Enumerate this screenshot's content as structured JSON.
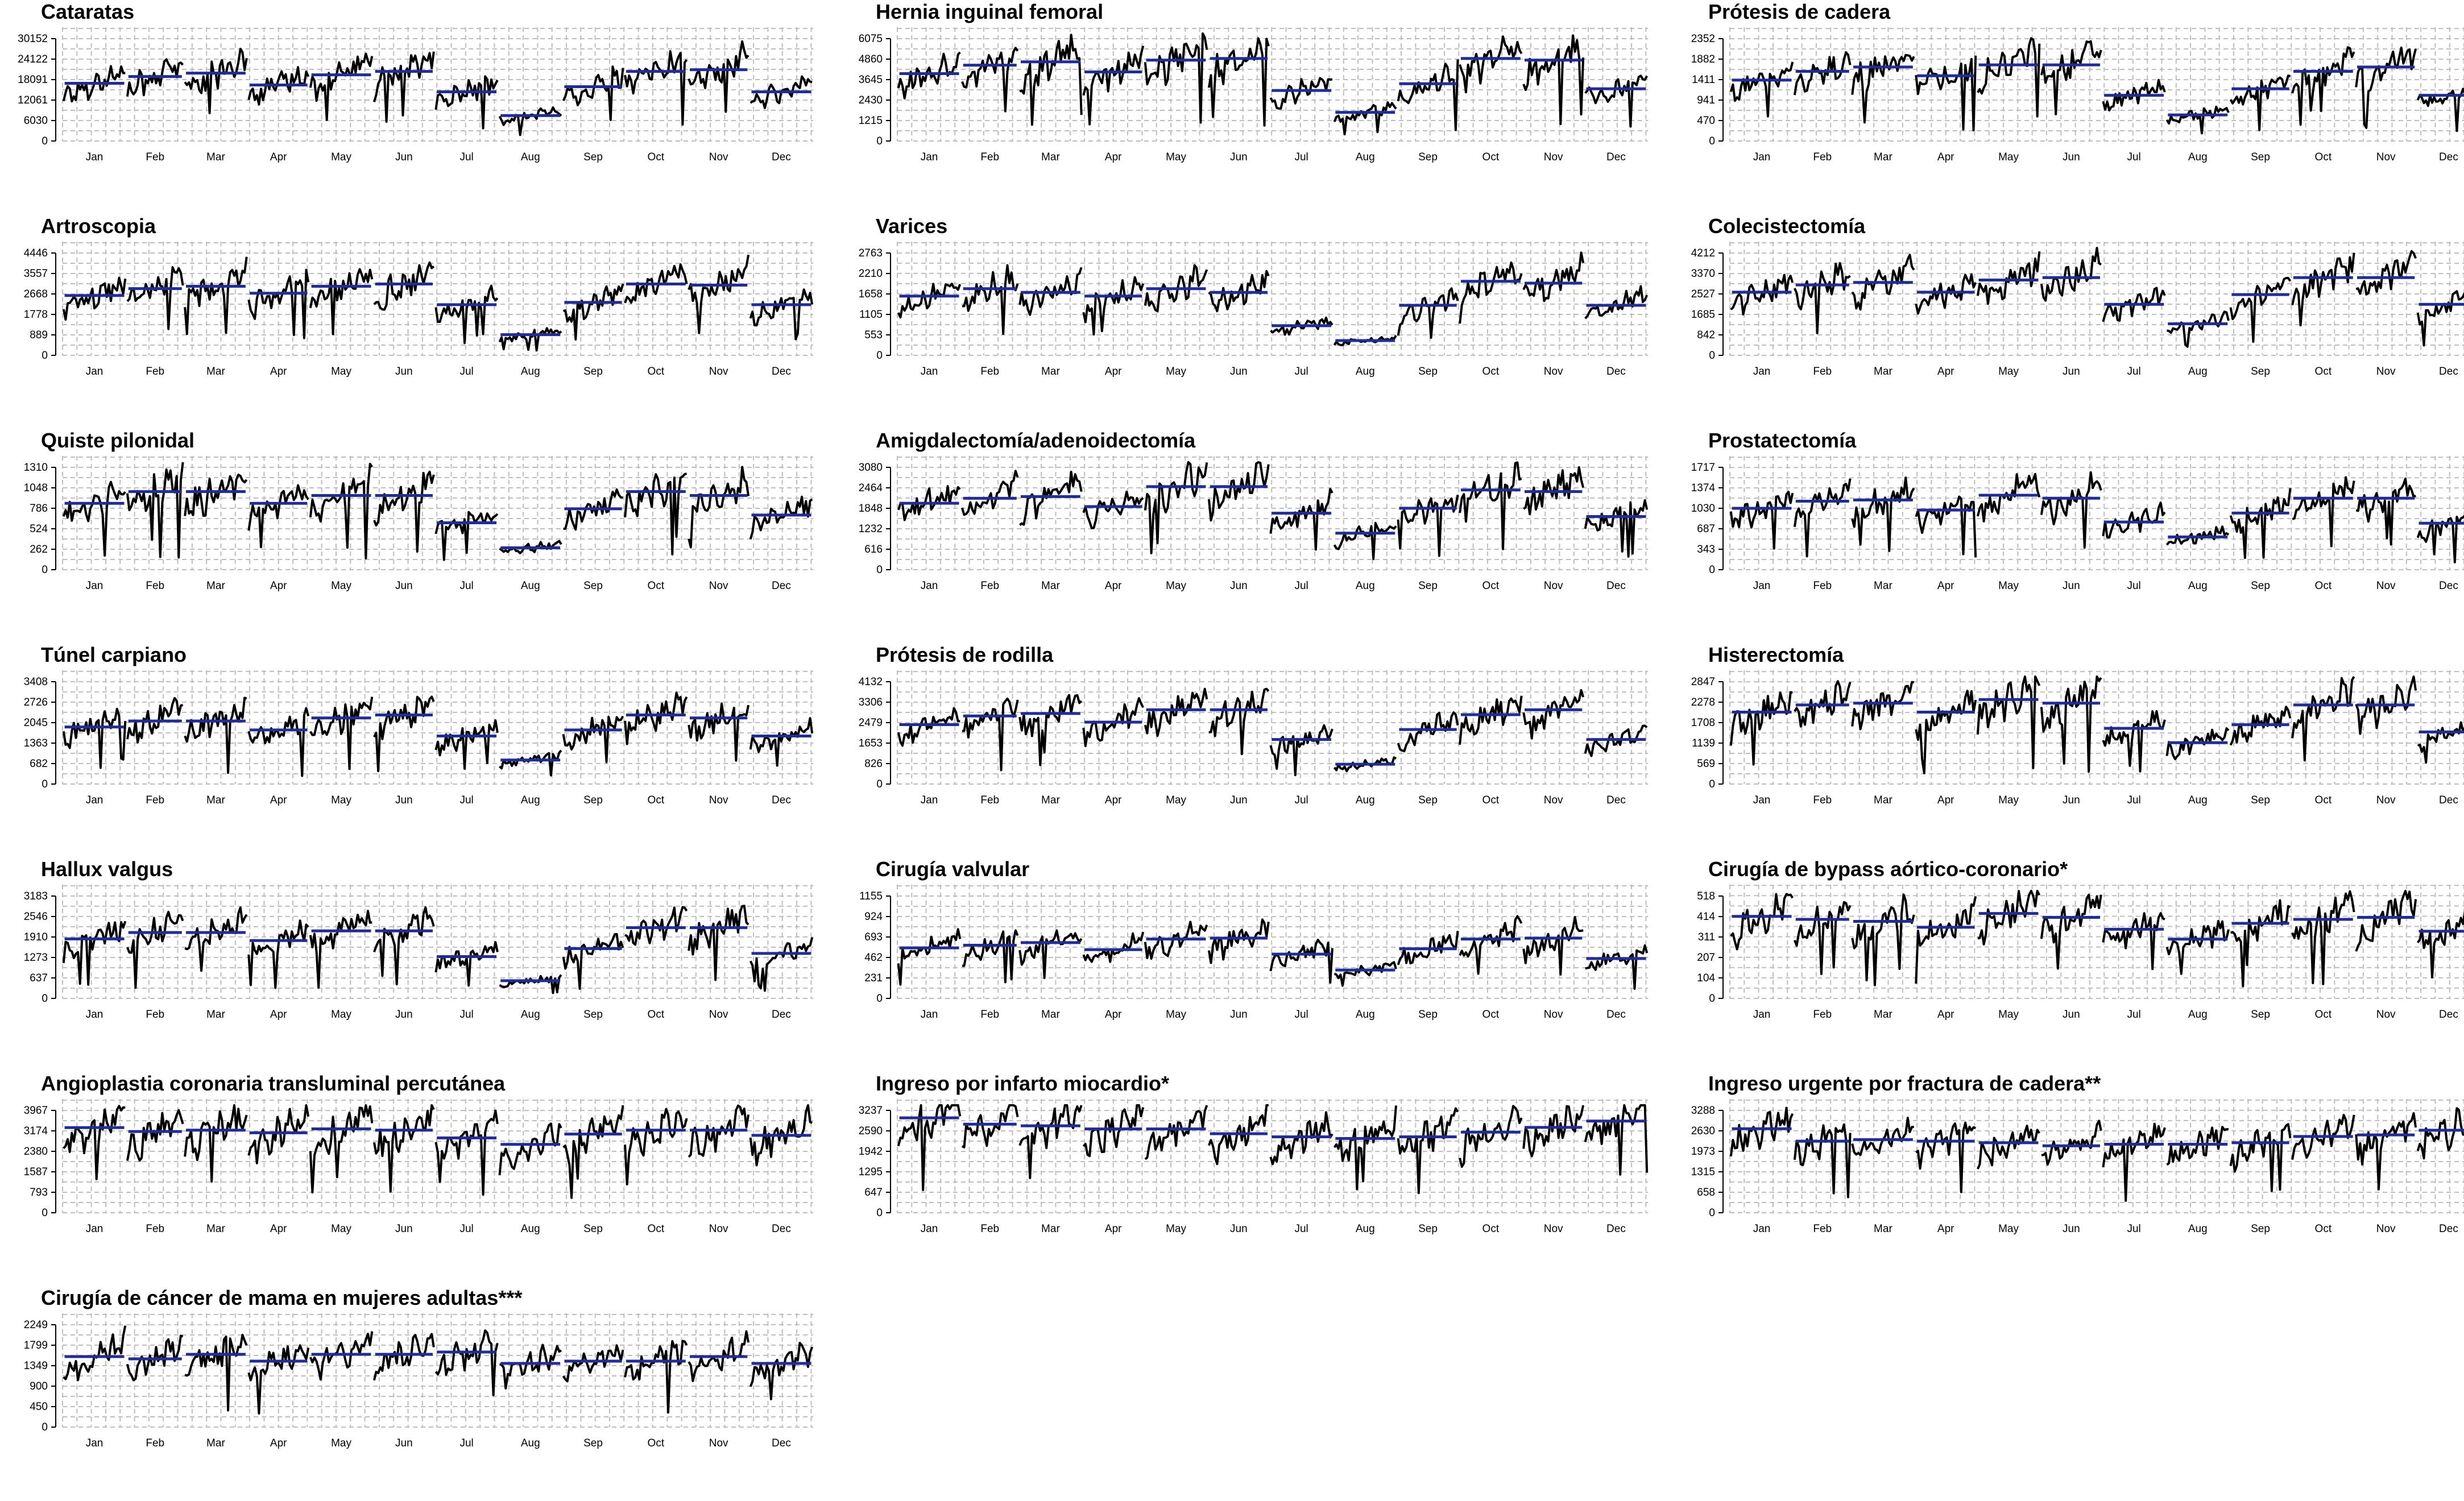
{
  "months": [
    "Jan",
    "Feb",
    "Mar",
    "Apr",
    "May",
    "Jun",
    "Jul",
    "Aug",
    "Sep",
    "Oct",
    "Nov",
    "Dec"
  ],
  "colors": {
    "series": "#000000",
    "mean": "#1f2c99",
    "grid": "#bdbdbd"
  },
  "chart_data": [
    {
      "type": "line",
      "title": "Cataratas",
      "yticks": [
        0,
        6030,
        12061,
        18091,
        24122,
        30152
      ],
      "ylim": [
        0,
        30152
      ],
      "monthly_mean": [
        17000,
        19000,
        20000,
        16500,
        19500,
        20500,
        14500,
        7500,
        16000,
        20500,
        21000,
        14500
      ]
    },
    {
      "type": "line",
      "title": "Hernia inguinal femoral",
      "yticks": [
        0,
        1215,
        2430,
        3645,
        4860,
        6075
      ],
      "ylim": [
        0,
        6075
      ],
      "monthly_mean": [
        4000,
        4500,
        4700,
        4100,
        4800,
        4900,
        3000,
        1700,
        3400,
        4900,
        4800,
        3100
      ]
    },
    {
      "type": "line",
      "title": "Prótesis de cadera",
      "yticks": [
        0,
        470,
        941,
        1411,
        1882,
        2352
      ],
      "ylim": [
        0,
        2352
      ],
      "monthly_mean": [
        1400,
        1600,
        1700,
        1500,
        1750,
        1750,
        1050,
        600,
        1200,
        1600,
        1700,
        1050
      ]
    },
    {
      "type": "line",
      "title": "Artroscopia",
      "yticks": [
        0,
        889,
        1778,
        2668,
        3557,
        4446
      ],
      "ylim": [
        0,
        4446
      ],
      "monthly_mean": [
        2600,
        2900,
        3000,
        2700,
        3000,
        3100,
        2200,
        900,
        2300,
        3100,
        3050,
        2200
      ]
    },
    {
      "type": "line",
      "title": "Varices",
      "yticks": [
        0,
        553,
        1105,
        1658,
        2210,
        2763
      ],
      "ylim": [
        0,
        2763
      ],
      "monthly_mean": [
        1600,
        1800,
        1700,
        1600,
        1800,
        1700,
        800,
        400,
        1350,
        2000,
        1950,
        1350
      ]
    },
    {
      "type": "line",
      "title": "Colecistectomía",
      "yticks": [
        0,
        842,
        1685,
        2527,
        3370,
        4212
      ],
      "ylim": [
        0,
        4212
      ],
      "monthly_mean": [
        2600,
        2900,
        3000,
        2600,
        3100,
        3200,
        2100,
        1300,
        2500,
        3200,
        3200,
        2100
      ]
    },
    {
      "type": "line",
      "title": "Quiste pilonidal",
      "yticks": [
        0,
        262,
        524,
        786,
        1048,
        1310
      ],
      "ylim": [
        0,
        1310
      ],
      "monthly_mean": [
        850,
        1000,
        1000,
        850,
        950,
        950,
        600,
        280,
        780,
        1000,
        950,
        700
      ]
    },
    {
      "type": "line",
      "title": "Amigdalectomía/adenoidectomía",
      "yticks": [
        0,
        616,
        1232,
        1848,
        2464,
        3080
      ],
      "ylim": [
        0,
        3080
      ],
      "monthly_mean": [
        2000,
        2150,
        2200,
        1900,
        2500,
        2500,
        1700,
        1100,
        1850,
        2400,
        2350,
        1600
      ]
    },
    {
      "type": "line",
      "title": "Prostatectomía",
      "yticks": [
        0,
        343,
        687,
        1030,
        1374,
        1717
      ],
      "ylim": [
        0,
        1717
      ],
      "monthly_mean": [
        1030,
        1150,
        1170,
        1000,
        1250,
        1200,
        800,
        550,
        950,
        1200,
        1200,
        780
      ]
    },
    {
      "type": "line",
      "title": "Túnel carpiano",
      "yticks": [
        0,
        682,
        1363,
        2045,
        2726,
        3408
      ],
      "ylim": [
        0,
        3408
      ],
      "monthly_mean": [
        1900,
        2100,
        2100,
        1800,
        2200,
        2300,
        1600,
        800,
        1800,
        2300,
        2200,
        1600
      ]
    },
    {
      "type": "line",
      "title": "Prótesis de rodilla",
      "yticks": [
        0,
        826,
        1653,
        2479,
        3306,
        4132
      ],
      "ylim": [
        0,
        4132
      ],
      "monthly_mean": [
        2400,
        2750,
        2850,
        2500,
        3000,
        3000,
        1800,
        800,
        2200,
        2800,
        3000,
        1800
      ]
    },
    {
      "type": "line",
      "title": "Histerectomía",
      "yticks": [
        0,
        569,
        1139,
        1708,
        2278,
        2847
      ],
      "ylim": [
        0,
        2847
      ],
      "monthly_mean": [
        2000,
        2200,
        2250,
        2000,
        2350,
        2250,
        1550,
        1150,
        1650,
        2200,
        2200,
        1450
      ]
    },
    {
      "type": "line",
      "title": "Hallux valgus",
      "yticks": [
        0,
        637,
        1273,
        1910,
        2546,
        3183
      ],
      "ylim": [
        0,
        3183
      ],
      "monthly_mean": [
        1850,
        2050,
        2050,
        1800,
        2100,
        2100,
        1300,
        550,
        1550,
        2200,
        2200,
        1400
      ]
    },
    {
      "type": "line",
      "title": "Cirugía valvular",
      "yticks": [
        0,
        231,
        462,
        693,
        924,
        1155
      ],
      "ylim": [
        0,
        1155
      ],
      "monthly_mean": [
        570,
        600,
        630,
        550,
        670,
        680,
        500,
        320,
        560,
        670,
        680,
        450
      ]
    },
    {
      "type": "line",
      "title": "Cirugía de bypass aórtico-coronario*",
      "yticks": [
        0,
        104,
        207,
        311,
        414,
        518
      ],
      "ylim": [
        0,
        518
      ],
      "monthly_mean": [
        415,
        400,
        390,
        360,
        430,
        410,
        350,
        300,
        380,
        400,
        410,
        340
      ]
    },
    {
      "type": "line",
      "title": "Angioplastia coronaria transluminal percutánea",
      "yticks": [
        0,
        793,
        1587,
        2380,
        3174,
        3967
      ],
      "ylim": [
        0,
        3967
      ],
      "monthly_mean": [
        3300,
        3150,
        3200,
        3100,
        3250,
        3200,
        2900,
        2650,
        3050,
        3200,
        3200,
        3000
      ]
    },
    {
      "type": "line",
      "title": "Ingreso por infarto miocardio*",
      "yticks": [
        0,
        647,
        1295,
        1942,
        2590,
        3237
      ],
      "ylim": [
        0,
        3237
      ],
      "monthly_mean": [
        3000,
        2800,
        2750,
        2650,
        2650,
        2500,
        2400,
        2350,
        2400,
        2550,
        2700,
        2900
      ]
    },
    {
      "type": "line",
      "title": "Ingreso urgente por fractura de cadera**",
      "yticks": [
        0,
        658,
        1315,
        1973,
        2630,
        3288
      ],
      "ylim": [
        0,
        3288
      ],
      "monthly_mean": [
        2700,
        2300,
        2350,
        2300,
        2250,
        2150,
        2200,
        2200,
        2250,
        2450,
        2500,
        2650
      ]
    },
    {
      "type": "line",
      "title": "Cirugía de cáncer de mama en mujeres adultas***",
      "yticks": [
        0,
        450,
        900,
        1349,
        1799,
        2249
      ],
      "ylim": [
        0,
        2249
      ],
      "monthly_mean": [
        1550,
        1500,
        1600,
        1450,
        1600,
        1600,
        1650,
        1400,
        1450,
        1450,
        1550,
        1400
      ]
    }
  ]
}
